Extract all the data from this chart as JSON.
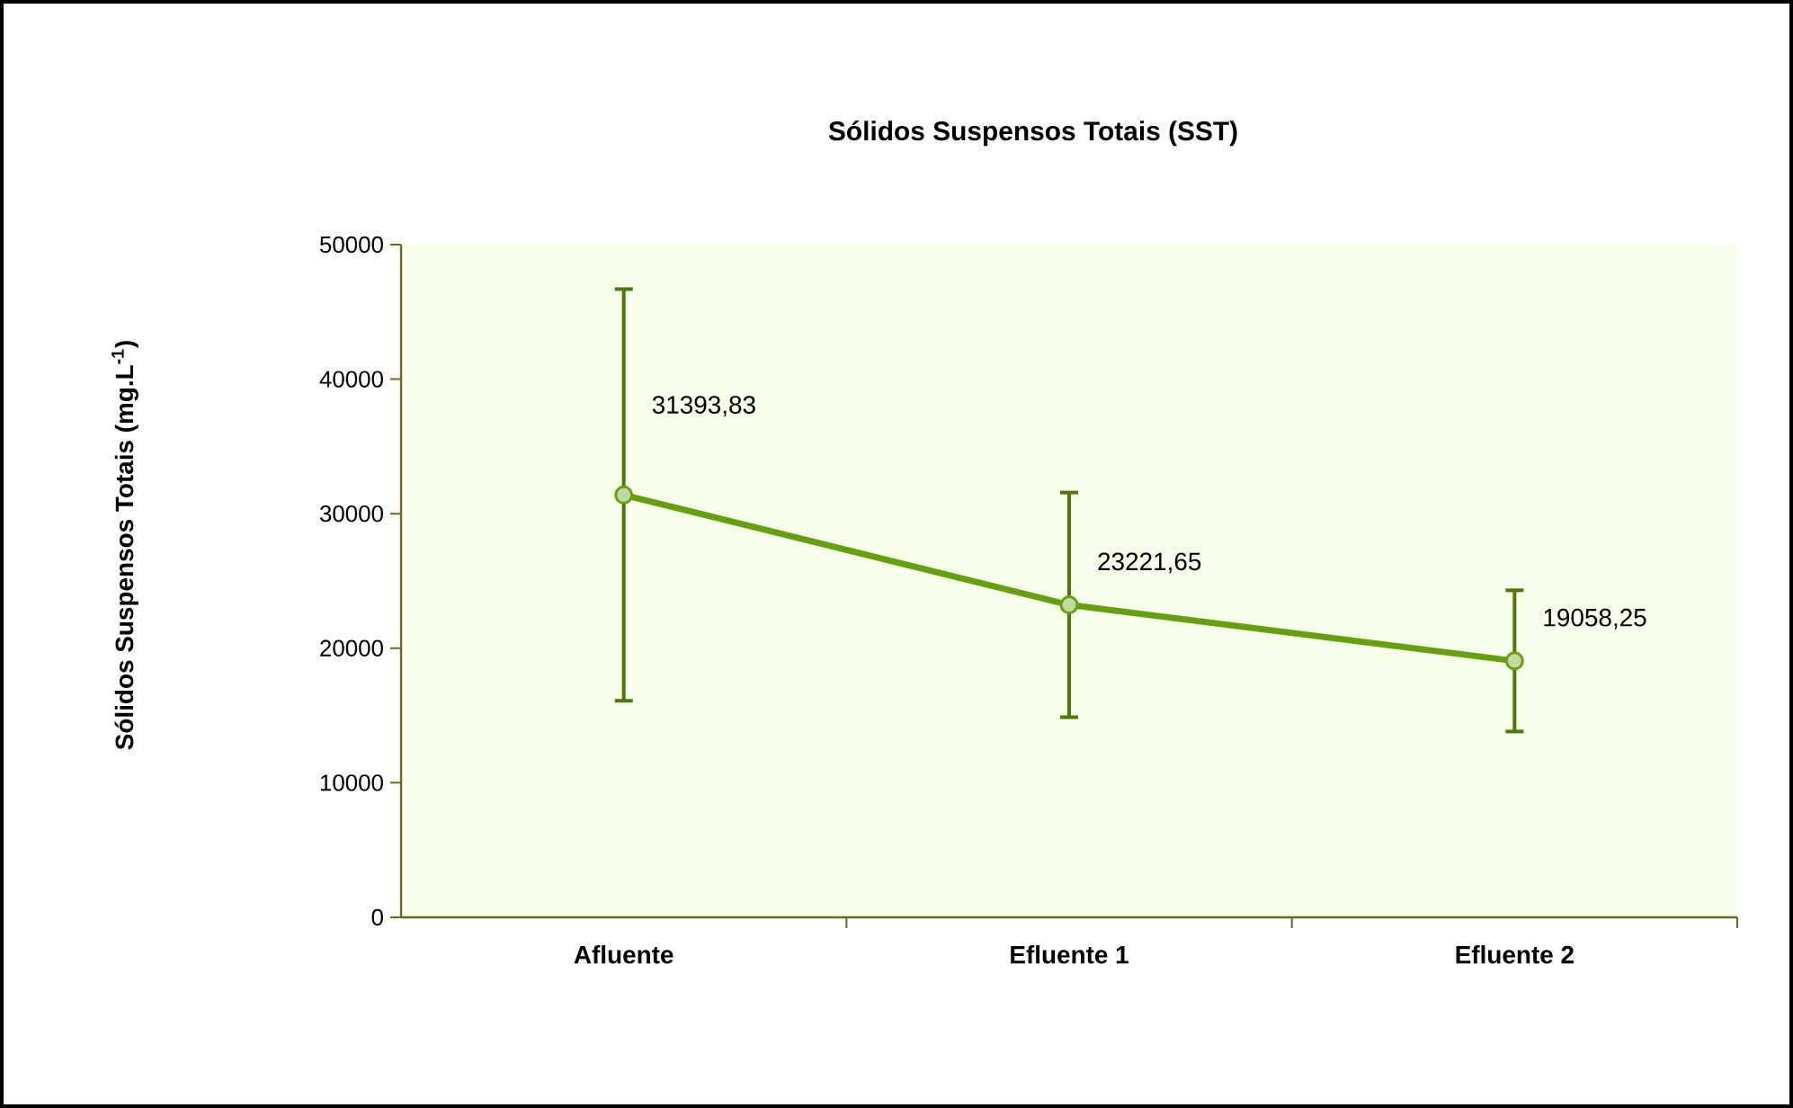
{
  "chart_data": {
    "type": "line",
    "title": "**Sólidos Suspensos Totais (SST)**",
    "ylabel": "**Sólidos Suspensos  Totais (mg.L$^{-1}$)**",
    "categories": [
      "Afluente",
      "Efluente 1",
      "Efluente 2"
    ],
    "series": [
      {
        "color": "#66a010",
        "values": [
          31393.83,
          23221.65,
          19058.25
        ],
        "errors": [
          15300,
          8350,
          5250
        ],
        "value_labels": [
          "31393,83",
          "23221,65",
          "19058,25"
        ]
      }
    ],
    "ylim": [
      0,
      50000
    ],
    "yticks": [
      0,
      10000,
      20000,
      30000,
      40000,
      50000
    ],
    "grid": false,
    "marker": "circle",
    "line_style": "solid"
  }
}
